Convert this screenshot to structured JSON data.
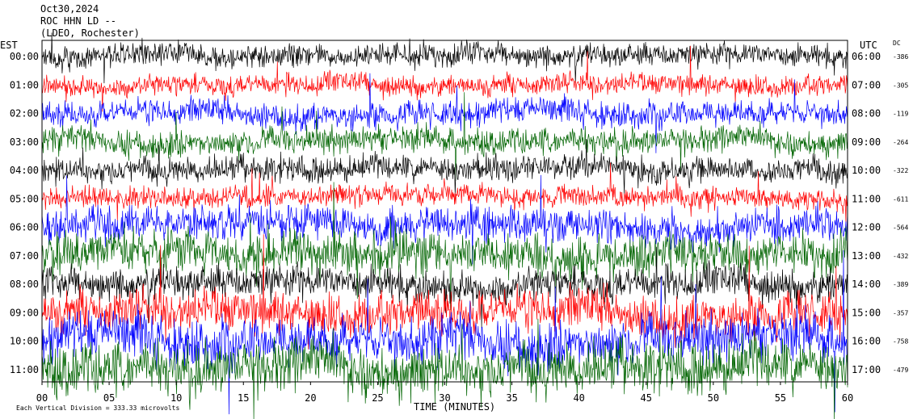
{
  "header": {
    "date": "Oct30,2024",
    "station": "ROC HHN LD --",
    "network": "(LDEO, Rochester)"
  },
  "chart_data": {
    "type": "line",
    "title": "ROC HHN LD --",
    "xlabel": "TIME (MINUTES)",
    "xlim": [
      0,
      60
    ],
    "x_ticks": [
      "00",
      "05",
      "10",
      "15",
      "20",
      "25",
      "30",
      "35",
      "40",
      "45",
      "50",
      "55",
      "60"
    ],
    "left_axis_label": "EST",
    "right_axis_label": "UTC",
    "dc_label": "DC",
    "trace_colors": [
      "#000000",
      "#ff0000",
      "#0000ff",
      "#006400"
    ],
    "series": [
      {
        "est": "00:00",
        "utc": "06:00",
        "dc": "-386",
        "color": "#000000",
        "amplitude": 0.55
      },
      {
        "est": "01:00",
        "utc": "07:00",
        "dc": "-305",
        "color": "#ff0000",
        "amplitude": 0.5
      },
      {
        "est": "02:00",
        "utc": "08:00",
        "dc": "-119",
        "color": "#0000ff",
        "amplitude": 0.6
      },
      {
        "est": "03:00",
        "utc": "09:00",
        "dc": "-264",
        "color": "#006400",
        "amplitude": 0.6
      },
      {
        "est": "04:00",
        "utc": "10:00",
        "dc": "-322",
        "color": "#000000",
        "amplitude": 0.6
      },
      {
        "est": "05:00",
        "utc": "11:00",
        "dc": "-611",
        "color": "#ff0000",
        "amplitude": 0.5
      },
      {
        "est": "06:00",
        "utc": "12:00",
        "dc": "-564",
        "color": "#0000ff",
        "amplitude": 0.8
      },
      {
        "est": "07:00",
        "utc": "13:00",
        "dc": "-432",
        "color": "#006400",
        "amplitude": 1.0
      },
      {
        "est": "08:00",
        "utc": "14:00",
        "dc": "-389",
        "color": "#000000",
        "amplitude": 0.8
      },
      {
        "est": "09:00",
        "utc": "15:00",
        "dc": "-357",
        "color": "#ff0000",
        "amplitude": 1.0
      },
      {
        "est": "10:00",
        "utc": "16:00",
        "dc": "-758",
        "color": "#0000ff",
        "amplitude": 1.1
      },
      {
        "est": "11:00",
        "utc": "17:00",
        "dc": "-479",
        "color": "#006400",
        "amplitude": 1.2
      }
    ],
    "scale_note": "Each Vertical Division = 333.33 microvolts",
    "grid": false
  }
}
